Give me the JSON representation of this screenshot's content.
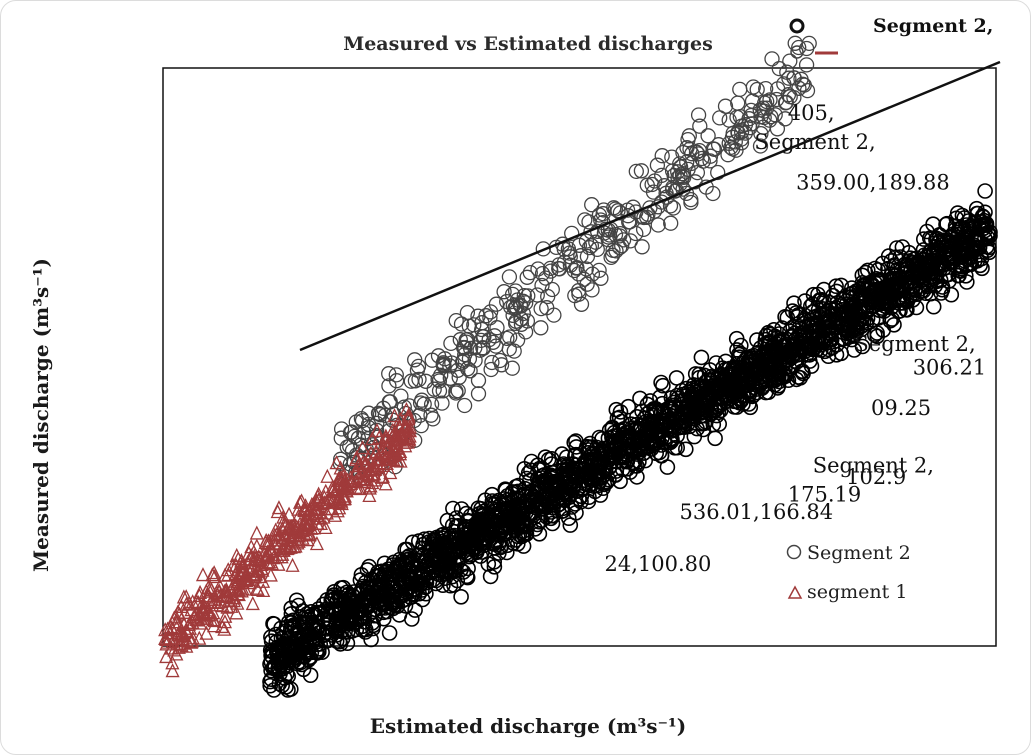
{
  "chart_data": {
    "type": "scatter",
    "title": "Measured vs Estimated discharges",
    "xlabel": "Estimated discharge (m³s⁻¹)",
    "ylabel": "Measured discharge (m³s⁻¹)",
    "legend_position": "bottom-right",
    "grid": false,
    "series": [
      {
        "name": "Segment 2",
        "marker": "circle",
        "color": "#444444"
      },
      {
        "name": "segment 1",
        "marker": "triangle",
        "color": "#a03a3a"
      }
    ],
    "top_legend": {
      "name": "Segment 2,",
      "marker": "circle",
      "color": "#111111"
    },
    "data_labels": [
      {
        "text": "Segment 2,",
        "x": 0.71,
        "y": 0.14
      },
      {
        "text": "405,",
        "x": 0.75,
        "y": 0.09
      },
      {
        "text": "359.00,189.88",
        "x": 0.76,
        "y": 0.21
      },
      {
        "text": "Segment 2,",
        "x": 0.83,
        "y": 0.49
      },
      {
        "text": "306.21",
        "x": 0.9,
        "y": 0.53
      },
      {
        "text": "09.25",
        "x": 0.85,
        "y": 0.6
      },
      {
        "text": "Segment 2,",
        "x": 0.78,
        "y": 0.7
      },
      {
        "text": "102.9",
        "x": 0.82,
        "y": 0.72
      },
      {
        "text": "536.01,166.84",
        "x": 0.62,
        "y": 0.78
      },
      {
        "text": "175.19",
        "x": 0.75,
        "y": 0.75
      },
      {
        "text": "24,100.80",
        "x": 0.53,
        "y": 0.87
      }
    ]
  },
  "legend": {
    "segment2_label": "Segment 2",
    "segment1_label": "segment 1"
  }
}
